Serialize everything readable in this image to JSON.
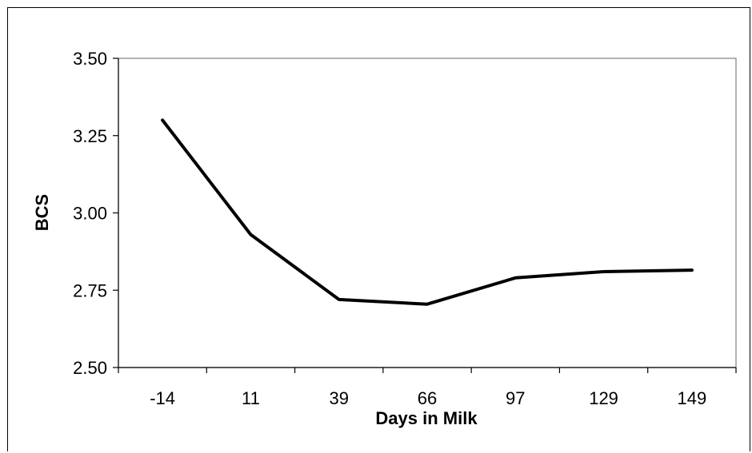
{
  "chart_data": {
    "type": "line",
    "title": "",
    "xlabel": "Days in Milk",
    "ylabel": "BCS",
    "categories": [
      "-14",
      "11",
      "39",
      "66",
      "97",
      "129",
      "149"
    ],
    "series": [
      {
        "values": [
          3.3,
          2.93,
          2.72,
          2.705,
          2.79,
          2.81,
          2.815
        ],
        "color": "#000000"
      }
    ],
    "ylim": [
      2.5,
      3.5
    ],
    "yticks": [
      "2.50",
      "2.75",
      "3.00",
      "3.25",
      "3.50"
    ],
    "grid": false,
    "legend": "none"
  }
}
